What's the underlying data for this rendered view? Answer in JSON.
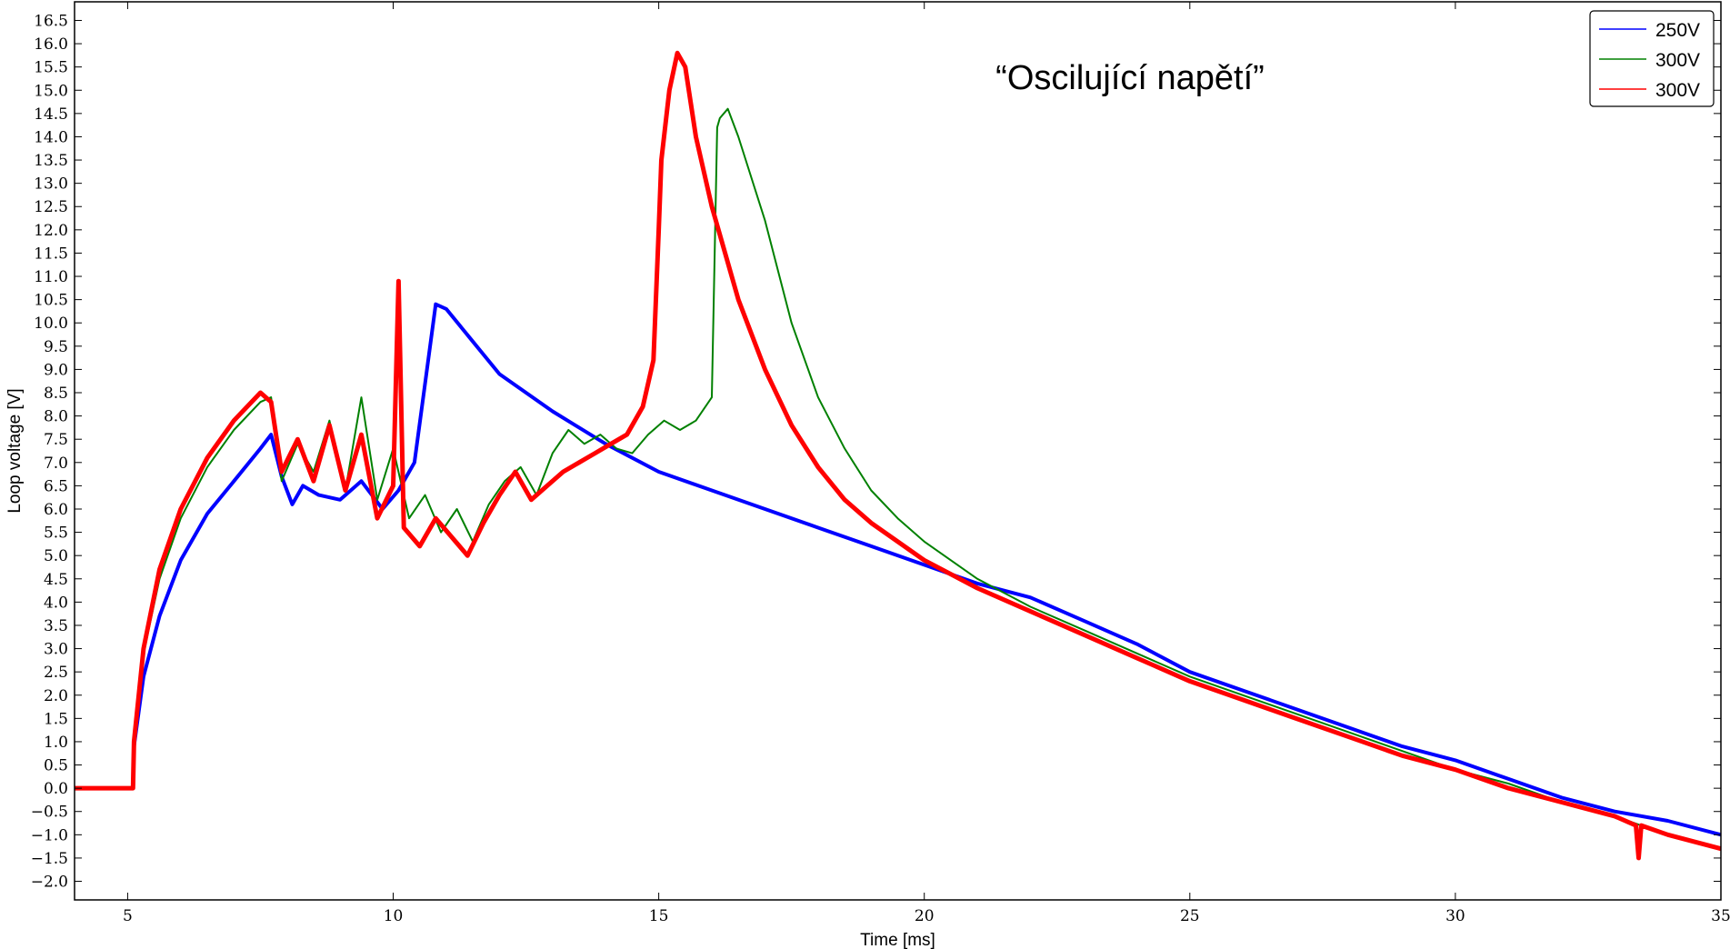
{
  "chart_data": {
    "type": "line",
    "xlabel": "Time [ms]",
    "ylabel": "Loop voltage [V]",
    "xlim": [
      4,
      35
    ],
    "ylim": [
      -2.4,
      16.9
    ],
    "xticks": [
      5,
      10,
      15,
      20,
      25,
      30,
      35
    ],
    "yticks": [
      -2.0,
      -1.5,
      -1.0,
      -0.5,
      0.0,
      0.5,
      1.0,
      1.5,
      2.0,
      2.5,
      3.0,
      3.5,
      4.0,
      4.5,
      5.0,
      5.5,
      6.0,
      6.5,
      7.0,
      7.5,
      8.0,
      8.5,
      9.0,
      9.5,
      10.0,
      10.5,
      11.0,
      11.5,
      12.0,
      12.5,
      13.0,
      13.5,
      14.0,
      14.5,
      15.0,
      15.5,
      16.0,
      16.5
    ],
    "ytick_labels": [
      "−2.0",
      "−1.5",
      "−1.0",
      "−0.5",
      "0.0",
      "0.5",
      "1.0",
      "1.5",
      "2.0",
      "2.5",
      "3.0",
      "3.5",
      "4.0",
      "4.5",
      "5.0",
      "5.5",
      "6.0",
      "6.5",
      "7.0",
      "7.5",
      "8.0",
      "8.5",
      "9.0",
      "9.5",
      "10.0",
      "10.5",
      "11.0",
      "11.5",
      "12.0",
      "12.5",
      "13.0",
      "13.5",
      "14.0",
      "14.5",
      "15.0",
      "15.5",
      "16.0",
      "16.5"
    ],
    "grid": false,
    "legend_position": "top-right",
    "annotation": "“Oscilující napětí”",
    "series": [
      {
        "name": "250V",
        "color": "#0000ff",
        "x": [
          4.0,
          5.1,
          5.12,
          5.3,
          5.6,
          6.0,
          6.5,
          7.0,
          7.5,
          7.7,
          7.9,
          8.1,
          8.3,
          8.6,
          9.0,
          9.4,
          9.8,
          10.1,
          10.4,
          10.6,
          10.8,
          11.0,
          11.5,
          12.0,
          13.0,
          14.0,
          15.0,
          16.0,
          17.0,
          18.0,
          19.0,
          20.0,
          21.0,
          22.0,
          23.0,
          24.0,
          25.0,
          26.0,
          27.0,
          28.0,
          29.0,
          30.0,
          31.0,
          32.0,
          33.0,
          34.0,
          35.0
        ],
        "y": [
          0.0,
          0.0,
          0.9,
          2.4,
          3.7,
          4.9,
          5.9,
          6.6,
          7.3,
          7.6,
          6.7,
          6.1,
          6.5,
          6.3,
          6.2,
          6.6,
          6.0,
          6.4,
          7.0,
          8.7,
          10.4,
          10.3,
          9.6,
          8.9,
          8.1,
          7.4,
          6.8,
          6.4,
          6.0,
          5.6,
          5.2,
          4.8,
          4.4,
          4.1,
          3.6,
          3.1,
          2.5,
          2.1,
          1.7,
          1.3,
          0.9,
          0.6,
          0.2,
          -0.2,
          -0.5,
          -0.7,
          -1.0
        ]
      },
      {
        "name": "300V",
        "color": "#008000",
        "x": [
          4.0,
          5.1,
          5.12,
          5.3,
          5.6,
          6.0,
          6.5,
          7.0,
          7.5,
          7.7,
          7.9,
          8.2,
          8.5,
          8.8,
          9.1,
          9.4,
          9.7,
          10.0,
          10.3,
          10.6,
          10.9,
          11.2,
          11.5,
          11.8,
          12.1,
          12.4,
          12.7,
          13.0,
          13.3,
          13.6,
          13.9,
          14.2,
          14.5,
          14.8,
          15.1,
          15.4,
          15.7,
          16.0,
          16.1,
          16.15,
          16.3,
          16.5,
          17.0,
          17.5,
          18.0,
          18.5,
          19.0,
          19.5,
          20.0,
          21.0,
          22.0,
          23.0,
          24.0,
          25.0,
          26.0,
          27.0,
          28.0,
          29.0,
          30.0,
          31.0,
          32.0,
          33.0,
          34.0,
          35.0
        ],
        "y": [
          0.0,
          0.0,
          1.0,
          2.9,
          4.5,
          5.8,
          6.9,
          7.7,
          8.3,
          8.4,
          6.6,
          7.4,
          6.8,
          7.9,
          6.4,
          8.4,
          6.2,
          7.3,
          5.8,
          6.3,
          5.5,
          6.0,
          5.3,
          6.1,
          6.6,
          6.9,
          6.3,
          7.2,
          7.7,
          7.4,
          7.6,
          7.3,
          7.2,
          7.6,
          7.9,
          7.7,
          7.9,
          8.4,
          14.2,
          14.4,
          14.6,
          14.0,
          12.2,
          10.0,
          8.4,
          7.3,
          6.4,
          5.8,
          5.3,
          4.5,
          3.9,
          3.4,
          2.9,
          2.4,
          2.0,
          1.6,
          1.2,
          0.8,
          0.4,
          0.1,
          -0.3,
          -0.6,
          -1.0,
          -1.3
        ]
      },
      {
        "name": "300V",
        "color": "#ff0000",
        "x": [
          4.0,
          5.1,
          5.12,
          5.3,
          5.6,
          6.0,
          6.5,
          7.0,
          7.5,
          7.7,
          7.9,
          8.2,
          8.5,
          8.8,
          9.1,
          9.4,
          9.7,
          10.0,
          10.1,
          10.2,
          10.5,
          10.8,
          11.1,
          11.4,
          11.7,
          12.0,
          12.3,
          12.6,
          12.9,
          13.2,
          13.5,
          13.8,
          14.1,
          14.4,
          14.7,
          14.9,
          15.0,
          15.05,
          15.2,
          15.35,
          15.5,
          15.7,
          16.0,
          16.5,
          17.0,
          17.5,
          18.0,
          18.5,
          19.0,
          19.5,
          20.0,
          21.0,
          22.0,
          23.0,
          24.0,
          25.0,
          26.0,
          27.0,
          28.0,
          29.0,
          30.0,
          31.0,
          32.0,
          33.0,
          33.4,
          33.45,
          33.5,
          34.0,
          35.0
        ],
        "y": [
          0.0,
          0.0,
          1.0,
          3.0,
          4.7,
          6.0,
          7.1,
          7.9,
          8.5,
          8.3,
          6.8,
          7.5,
          6.6,
          7.8,
          6.4,
          7.6,
          5.8,
          6.5,
          10.9,
          5.6,
          5.2,
          5.8,
          5.4,
          5.0,
          5.7,
          6.3,
          6.8,
          6.2,
          6.5,
          6.8,
          7.0,
          7.2,
          7.4,
          7.6,
          8.2,
          9.2,
          12.0,
          13.5,
          15.0,
          15.8,
          15.5,
          14.0,
          12.5,
          10.5,
          9.0,
          7.8,
          6.9,
          6.2,
          5.7,
          5.3,
          4.9,
          4.3,
          3.8,
          3.3,
          2.8,
          2.3,
          1.9,
          1.5,
          1.1,
          0.7,
          0.4,
          0.0,
          -0.3,
          -0.6,
          -0.8,
          -1.5,
          -0.8,
          -1.0,
          -1.3
        ]
      }
    ]
  }
}
